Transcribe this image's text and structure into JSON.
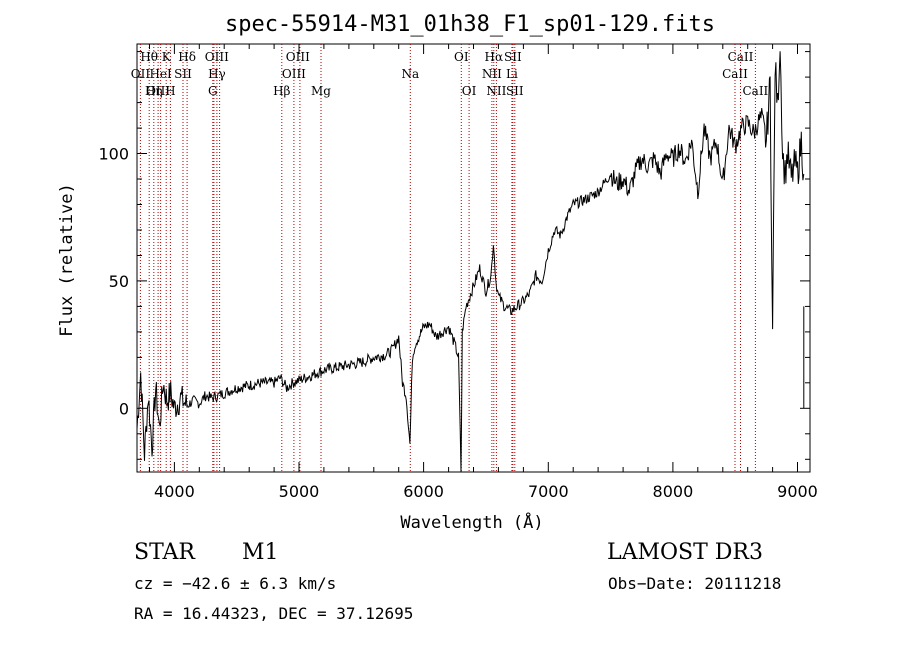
{
  "chart_data": {
    "type": "line",
    "title": "spec-55914-M31_01h38_F1_sp01-129.fits",
    "xlabel": "Wavelength (Å)",
    "ylabel": "Flux (relative)",
    "xlim": [
      3700,
      9100
    ],
    "ylim": [
      -25,
      143
    ],
    "xticks": [
      4000,
      5000,
      6000,
      7000,
      8000,
      9000
    ],
    "yticks": [
      0,
      50,
      100
    ],
    "grid": false,
    "spectrum": {
      "name": "flux",
      "x": [
        3700,
        3730,
        3760,
        3790,
        3820,
        3850,
        3880,
        3910,
        3940,
        3970,
        4000,
        4050,
        4100,
        4150,
        4200,
        4250,
        4300,
        4350,
        4400,
        4450,
        4500,
        4600,
        4700,
        4800,
        4850,
        4900,
        4950,
        5000,
        5100,
        5200,
        5300,
        5400,
        5500,
        5600,
        5700,
        5750,
        5800,
        5830,
        5860,
        5890,
        5910,
        5930,
        5960,
        6000,
        6050,
        6100,
        6150,
        6200,
        6250,
        6280,
        6300,
        6310,
        6340,
        6400,
        6450,
        6500,
        6540,
        6560,
        6580,
        6600,
        6650,
        6700,
        6750,
        6800,
        6850,
        6900,
        6950,
        7000,
        7050,
        7100,
        7150,
        7200,
        7300,
        7400,
        7500,
        7550,
        7600,
        7650,
        7700,
        7750,
        7800,
        7850,
        7900,
        7950,
        8000,
        8050,
        8100,
        8150,
        8200,
        8250,
        8300,
        8350,
        8400,
        8450,
        8500,
        8550,
        8600,
        8650,
        8700,
        8750,
        8780,
        8800,
        8820,
        8840,
        8860,
        8880,
        8900,
        8920,
        8950,
        8980,
        9000,
        9030,
        9050
      ],
      "y": [
        -8,
        14,
        -18,
        5,
        -15,
        8,
        -8,
        10,
        3,
        6,
        0,
        4,
        1,
        3,
        2,
        5,
        4,
        5,
        6,
        7,
        8,
        9,
        10,
        10,
        12,
        8,
        10,
        11,
        13,
        15,
        16,
        17,
        18,
        20,
        21,
        23,
        28,
        10,
        5,
        -14,
        20,
        25,
        28,
        32,
        33,
        28,
        30,
        32,
        25,
        20,
        -25,
        30,
        40,
        48,
        55,
        46,
        52,
        65,
        50,
        44,
        40,
        38,
        40,
        42,
        45,
        52,
        50,
        62,
        70,
        68,
        75,
        80,
        82,
        85,
        92,
        88,
        90,
        85,
        93,
        98,
        95,
        98,
        92,
        100,
        98,
        102,
        97,
        105,
        85,
        110,
        98,
        105,
        88,
        110,
        103,
        110,
        112,
        108,
        114,
        105,
        128,
        30,
        135,
        118,
        145,
        100,
        92,
        100,
        90,
        96,
        92,
        105,
        92
      ]
    },
    "lines": [
      {
        "name": "Hθ",
        "w": 3798
      },
      {
        "name": "OII",
        "w": 3727
      },
      {
        "name": "OIII",
        "w": 3869
      },
      {
        "name": "HeI",
        "w": 3889
      },
      {
        "name": "K",
        "w": 3934
      },
      {
        "name": "H",
        "w": 3968
      },
      {
        "name": "Hη",
        "w": 3835
      },
      {
        "name": "SII",
        "w": 4069
      },
      {
        "name": "Hδ",
        "w": 4102
      },
      {
        "name": "OIII",
        "w": 4317
      },
      {
        "name": "Hγ",
        "w": 4341
      },
      {
        "name": "G",
        "w": 4308
      },
      {
        "name": "OIII",
        "w": 4363
      },
      {
        "name": "Hβ",
        "w": 4862
      },
      {
        "name": "OIII",
        "w": 4959
      },
      {
        "name": "OIII",
        "w": 5007
      },
      {
        "name": "Mg",
        "w": 5176
      },
      {
        "name": "Na",
        "w": 5893
      },
      {
        "name": "OI",
        "w": 6302
      },
      {
        "name": "OI",
        "w": 6365
      },
      {
        "name": "Hα",
        "w": 6563
      },
      {
        "name": "NII",
        "w": 6548
      },
      {
        "name": "NII",
        "w": 6584
      },
      {
        "name": "Li",
        "w": 6708
      },
      {
        "name": "SII",
        "w": 6716
      },
      {
        "name": "SII",
        "w": 6731
      },
      {
        "name": "CaII",
        "w": 8498
      },
      {
        "name": "CaII",
        "w": 8542
      },
      {
        "name": "CaII",
        "w": 8662
      }
    ],
    "labels": {
      "row1": [
        {
          "t": "Hθ",
          "w": 3798
        },
        {
          "t": "K",
          "w": 3934
        },
        {
          "t": "Hδ",
          "w": 4102
        },
        {
          "t": "OIII",
          "w": 4340
        },
        {
          "t": "OIII",
          "w": 4990
        },
        {
          "t": "OI",
          "w": 6302
        },
        {
          "t": "Hα",
          "w": 6563
        },
        {
          "t": "SII",
          "w": 6716
        },
        {
          "t": "CaII",
          "w": 8542
        }
      ],
      "row2": [
        {
          "t": "OII",
          "w": 3727
        },
        {
          "t": "HeI",
          "w": 3889
        },
        {
          "t": "SII",
          "w": 4069
        },
        {
          "t": "Hγ",
          "w": 4341
        },
        {
          "t": "OIII",
          "w": 4959
        },
        {
          "t": "Na",
          "w": 5893
        },
        {
          "t": "NII",
          "w": 6548
        },
        {
          "t": "Li",
          "w": 6708
        },
        {
          "t": "CaII",
          "w": 8498
        }
      ],
      "row3": [
        {
          "t": "OIII",
          "w": 3869
        },
        {
          "t": "Hη",
          "w": 3835
        },
        {
          "t": "H",
          "w": 3968
        },
        {
          "t": "G",
          "w": 4308
        },
        {
          "t": "Hβ",
          "w": 4862
        },
        {
          "t": "Mg",
          "w": 5176
        },
        {
          "t": "OI",
          "w": 6365
        },
        {
          "t": "NII",
          "w": 6584
        },
        {
          "t": "SII",
          "w": 6731
        },
        {
          "t": "CaII",
          "w": 8662
        }
      ]
    }
  },
  "info": {
    "class": "STAR",
    "subclass": "M1",
    "cz": "cz = −42.6 ± 6.3 km/s",
    "radec": "RA =  16.44323, DEC =  37.12695",
    "survey": "LAMOST DR3",
    "obsdate": "Obs−Date: 20111218"
  },
  "colors": {
    "line_marker": "#b00000",
    "spectrum": "#000000",
    "axes": "#000000"
  }
}
